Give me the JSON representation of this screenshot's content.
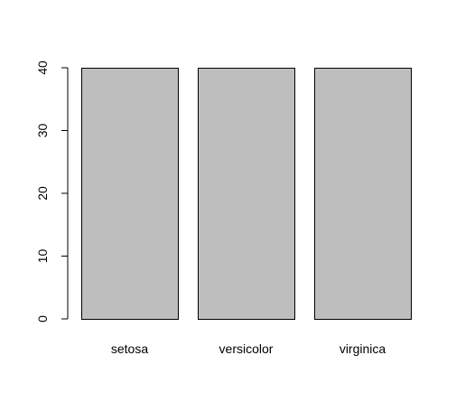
{
  "chart_data": {
    "type": "bar",
    "categories": [
      "setosa",
      "versicolor",
      "virginica"
    ],
    "values": [
      40,
      40,
      40
    ],
    "title": "",
    "xlabel": "",
    "ylabel": "",
    "ylim": [
      0,
      40
    ],
    "yticks": [
      0,
      10,
      20,
      30,
      40
    ],
    "ytick_labels": [
      "0",
      "10",
      "20",
      "30",
      "40"
    ],
    "grid": false,
    "legend": "none",
    "bar_color": "#bebebe",
    "bar_edge_color": "#000000"
  }
}
